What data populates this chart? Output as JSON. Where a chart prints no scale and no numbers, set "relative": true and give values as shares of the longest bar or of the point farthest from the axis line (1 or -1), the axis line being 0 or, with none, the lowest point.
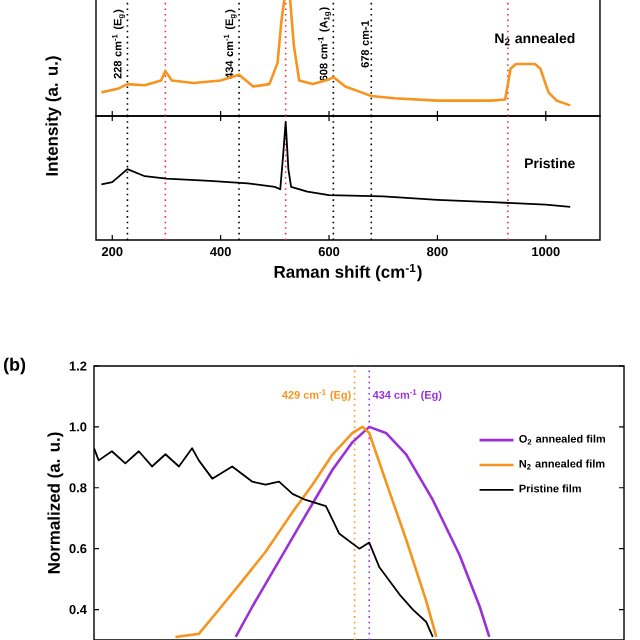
{
  "chart_data": [
    {
      "type": "line",
      "relative": true,
      "xlim": [
        170,
        1100
      ],
      "xticks": [
        200,
        400,
        600,
        800,
        1000
      ],
      "tick_labels": false,
      "ylabel": "Intensity (a. u.)",
      "marker": "none",
      "line_style": "solid",
      "series": [
        {
          "color": "#f7941d",
          "x": [
            180,
            210,
            228,
            260,
            290,
            298,
            310,
            350,
            400,
            434,
            460,
            490,
            505,
            512,
            518,
            528,
            535,
            545,
            570,
            600,
            608,
            630,
            660,
            678,
            720,
            800,
            900,
            925,
            935,
            945,
            980,
            990,
            1005,
            1020,
            1045
          ],
          "values": [
            0.2,
            0.23,
            0.27,
            0.26,
            0.3,
            0.38,
            0.3,
            0.28,
            0.3,
            0.35,
            0.25,
            0.27,
            0.45,
            0.8,
            1,
            1,
            0.6,
            0.3,
            0.27,
            0.31,
            0.33,
            0.25,
            0.2,
            0.17,
            0.15,
            0.13,
            0.13,
            0.14,
            0.4,
            0.44,
            0.44,
            0.4,
            0.2,
            0.13,
            0.09
          ]
        }
      ],
      "ref_lines": [
        {
          "axis": "x",
          "value": 228,
          "label": "228 cm$^{-1}$ (E$_{g}$)",
          "color": "#000000",
          "line_style": "dotted"
        },
        {
          "axis": "x",
          "value": 298,
          "color": "#e8383d",
          "line_style": "dotted"
        },
        {
          "axis": "x",
          "value": 434,
          "label": "434 cm$^{-1}$ (E$_{g}$)",
          "color": "#000000",
          "line_style": "dotted"
        },
        {
          "axis": "x",
          "value": 520,
          "color": "#e8383d",
          "line_style": "dotted"
        },
        {
          "axis": "x",
          "value": 608,
          "label": "608 cm$^{-1}$ (A$_{1g}$)",
          "color": "#000000",
          "line_style": "dotted"
        },
        {
          "axis": "x",
          "value": 678,
          "label": "678 cm-1",
          "color": "#000000",
          "line_style": "dotted"
        },
        {
          "axis": "x",
          "value": 930,
          "color": "#e8383d",
          "line_style": "dotted"
        }
      ],
      "annotations": [
        "N$_{2}$ annealed"
      ]
    },
    {
      "type": "line",
      "relative": true,
      "xlim": [
        170,
        1100
      ],
      "xticks": [
        200,
        400,
        600,
        800,
        1000
      ],
      "tick_labels": "x",
      "xlabel": "Raman shift (cm$^{-1}$)",
      "marker": "none",
      "line_style": "solid",
      "series": [
        {
          "color": "#000000",
          "x": [
            180,
            200,
            228,
            260,
            300,
            380,
            450,
            500,
            510,
            515,
            520,
            525,
            530,
            560,
            600,
            700,
            800,
            900,
            1000,
            1045
          ],
          "values": [
            0.47,
            0.49,
            0.6,
            0.54,
            0.52,
            0.5,
            0.48,
            0.45,
            0.43,
            0.7,
            1,
            0.6,
            0.45,
            0.41,
            0.38,
            0.37,
            0.34,
            0.32,
            0.3,
            0.28
          ]
        }
      ],
      "ref_lines": [
        {
          "axis": "x",
          "value": 228,
          "color": "#000000",
          "line_style": "dotted"
        },
        {
          "axis": "x",
          "value": 298,
          "color": "#e8383d",
          "line_style": "dotted"
        },
        {
          "axis": "x",
          "value": 434,
          "color": "#000000",
          "line_style": "dotted"
        },
        {
          "axis": "x",
          "value": 520,
          "color": "#e8383d",
          "line_style": "dotted"
        },
        {
          "axis": "x",
          "value": 608,
          "color": "#000000",
          "line_style": "dotted"
        },
        {
          "axis": "x",
          "value": 678,
          "color": "#000000",
          "line_style": "dotted"
        },
        {
          "axis": "x",
          "value": 930,
          "color": "#e8383d",
          "line_style": "dotted"
        }
      ],
      "annotations": [
        "Pristine"
      ]
    },
    {
      "type": "line",
      "xlim": [
        340,
        521
      ],
      "ylim": [
        0.3,
        1.2
      ],
      "yticks": [
        0.4,
        0.6,
        0.8,
        {
          "value": 1.0,
          "label": "1.0"
        },
        1.2
      ],
      "tick_labels": "y",
      "ylabel": "Normalized (a. u.)",
      "legend": "right",
      "marker": "none",
      "line_style": "solid",
      "series": [
        {
          "name": "O$_{2}$ annealed film",
          "color": "#9b30d9",
          "x": [
            388.4,
            394.1,
            403.2,
            412.3,
            421.5,
            428.3,
            434,
            439.7,
            446.6,
            455.7,
            464.8,
            471.7,
            475
          ],
          "values": [
            0.31,
            0.41,
            0.56,
            0.71,
            0.86,
            0.95,
            1.0,
            0.98,
            0.91,
            0.76,
            0.58,
            0.41,
            0.31
          ]
        },
        {
          "name": "N$_{2}$ annealed film",
          "color": "#f7941d",
          "x": [
            367.8,
            375.8,
            382.7,
            389.5,
            398.6,
            407.8,
            414.6,
            421.5,
            428.3,
            431.7,
            434,
            439.7,
            446.6,
            453.4,
            456.9
          ],
          "values": [
            0.31,
            0.32,
            0.4,
            0.48,
            0.59,
            0.72,
            0.81,
            0.91,
            0.98,
            1.0,
            0.98,
            0.82,
            0.63,
            0.43,
            0.31
          ]
        },
        {
          "name": "Pristine film",
          "color": "#000000",
          "x": [
            340,
            341.6,
            346.1,
            350.7,
            355.3,
            359.8,
            364.4,
            369,
            373.5,
            375.8,
            380.4,
            387.2,
            394.1,
            398.6,
            403.2,
            407.8,
            412.3,
            419.2,
            423.7,
            430.6,
            434,
            437.4,
            444.3,
            448.9,
            453.4,
            455.7
          ],
          "values": [
            0.93,
            0.89,
            0.92,
            0.88,
            0.92,
            0.87,
            0.91,
            0.87,
            0.93,
            0.89,
            0.83,
            0.87,
            0.82,
            0.81,
            0.82,
            0.78,
            0.76,
            0.74,
            0.65,
            0.6,
            0.62,
            0.54,
            0.45,
            0.4,
            0.36,
            0.31
          ]
        }
      ],
      "ref_lines": [
        {
          "axis": "x",
          "value": 429,
          "label": "429 cm$^{-1}$ (Eg)",
          "color": "#f7941d",
          "line_style": "dotted"
        },
        {
          "axis": "x",
          "value": 434,
          "label": "434 cm$^{-1}$ (Eg)",
          "color": "#9b30d9",
          "line_style": "dotted"
        }
      ],
      "annotations": [
        "(b)"
      ]
    }
  ]
}
